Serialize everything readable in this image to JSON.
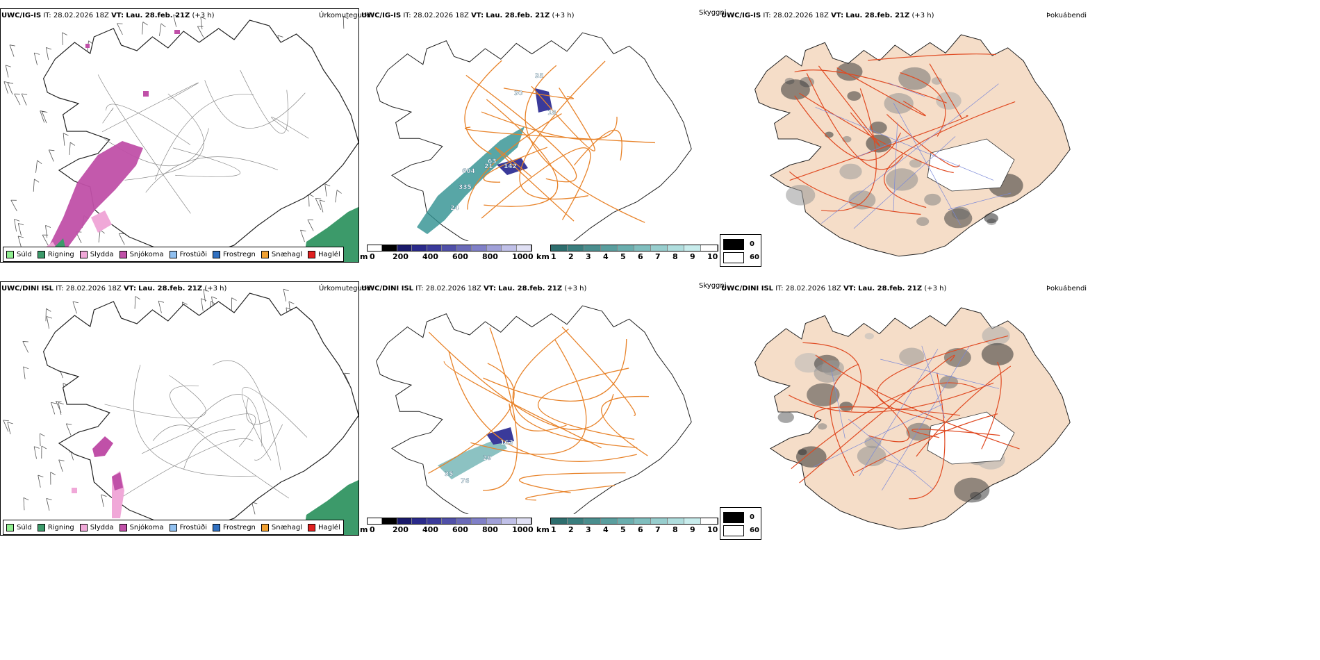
{
  "rows": [
    {
      "id": "top",
      "precip_header": {
        "model": "UWC/IG-IS",
        "it": "IT: 28.02.2026 18Z",
        "vt_label": "VT:",
        "vt": "Lau. 28.feb. 21Z",
        "lead": "(+3 h)"
      },
      "precip_title": "Úrkomutegund",
      "cloud_header": {
        "model": "UWC/IG-IS",
        "it": "IT: 28.02.2026 18Z",
        "vt_label": "VT:",
        "vt": "Lau. 28.feb. 21Z",
        "lead": "(+3 h)"
      },
      "cloud_title": "Skyggni",
      "fog_header": {
        "model": "UWC/IG-IS",
        "it": "IT: 28.02.2026 18Z",
        "vt_label": "VT:",
        "vt": "Lau. 28.feb. 21Z",
        "lead": "(+3 h)"
      },
      "fog_title": "Þokuábendi",
      "cloud_labels": [
        "604",
        "335",
        "24",
        "21",
        "142",
        "63",
        "30",
        "18",
        "35"
      ]
    },
    {
      "id": "bottom",
      "precip_header": {
        "model": "UWC/DINI ISL",
        "it": "IT: 28.02.2026 18Z",
        "vt_label": "VT:",
        "vt": "Lau. 28.feb. 21Z",
        "lead": "(+3 h)"
      },
      "precip_title": "Úrkomutegund",
      "cloud_header": {
        "model": "UWC/DINI ISL",
        "it": "IT: 28.02.2026 18Z",
        "vt_label": "VT:",
        "vt": "Lau. 28.feb. 21Z",
        "lead": "(+3 h)"
      },
      "cloud_title": "Skyggni",
      "fog_header": {
        "model": "UWC/DINI ISL",
        "it": "IT: 28.02.2026 18Z",
        "vt_label": "VT:",
        "vt": "Lau. 28.feb. 21Z",
        "lead": "(+3 h)"
      },
      "fog_title": "Þokuábendi",
      "cloud_labels": [
        "163",
        "29",
        "76",
        "35"
      ]
    }
  ],
  "precip_legend": [
    {
      "label": "Súld",
      "color": "#90ee90"
    },
    {
      "label": "Rigning",
      "color": "#3c9a6a"
    },
    {
      "label": "Slydda",
      "color": "#f0a8d8"
    },
    {
      "label": "Snjókoma",
      "color": "#c050a8"
    },
    {
      "label": "Frostúði",
      "color": "#90c0f0"
    },
    {
      "label": "Frostregn",
      "color": "#3070c0"
    },
    {
      "label": "Snæhagl",
      "color": "#f0a030"
    },
    {
      "label": "Haglél",
      "color": "#e02020"
    }
  ],
  "height_bar": {
    "unit": "m",
    "ticks": [
      "0",
      "200",
      "400",
      "600",
      "800",
      "1000"
    ]
  },
  "vis_bar": {
    "unit": "km",
    "ticks": [
      "1",
      "2",
      "3",
      "4",
      "5",
      "6",
      "7",
      "8",
      "9",
      "10"
    ]
  },
  "fog_legend": {
    "dark_value": "0",
    "light_value": "60"
  }
}
